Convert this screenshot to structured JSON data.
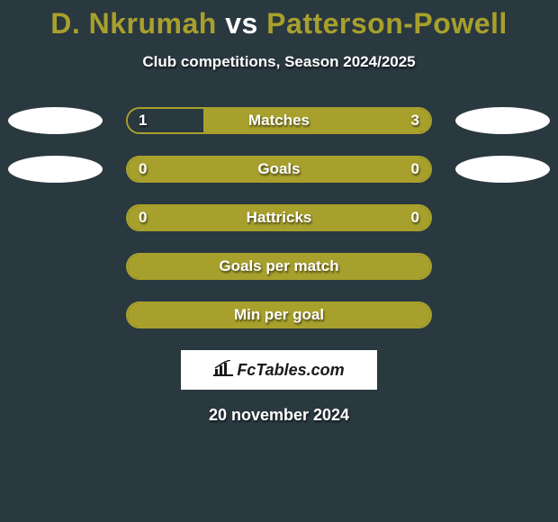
{
  "title": {
    "player1": "D. Nkrumah",
    "vs": "vs",
    "player2": "Patterson-Powell",
    "player1_color": "#a8a02c",
    "vs_color": "#ffffff",
    "player2_color": "#a8a02c"
  },
  "subtitle": "Club competitions, Season 2024/2025",
  "accent_color": "#a8a02c",
  "background_color": "#2a3840",
  "rows": [
    {
      "label": "Matches",
      "left_value": "1",
      "right_value": "3",
      "left_pct": 25,
      "right_pct": 75,
      "show_values": true,
      "show_left_oval": true,
      "show_right_oval": true
    },
    {
      "label": "Goals",
      "left_value": "0",
      "right_value": "0",
      "left_pct": 0,
      "right_pct": 100,
      "show_values": true,
      "show_left_oval": true,
      "show_right_oval": true
    },
    {
      "label": "Hattricks",
      "left_value": "0",
      "right_value": "0",
      "left_pct": 0,
      "right_pct": 100,
      "show_values": true,
      "show_left_oval": false,
      "show_right_oval": false
    },
    {
      "label": "Goals per match",
      "left_value": "",
      "right_value": "",
      "left_pct": 0,
      "right_pct": 100,
      "show_values": false,
      "show_left_oval": false,
      "show_right_oval": false
    },
    {
      "label": "Min per goal",
      "left_value": "",
      "right_value": "",
      "left_pct": 0,
      "right_pct": 100,
      "show_values": false,
      "show_left_oval": false,
      "show_right_oval": false
    }
  ],
  "logo": "FcTables.com",
  "date": "20 november 2024"
}
